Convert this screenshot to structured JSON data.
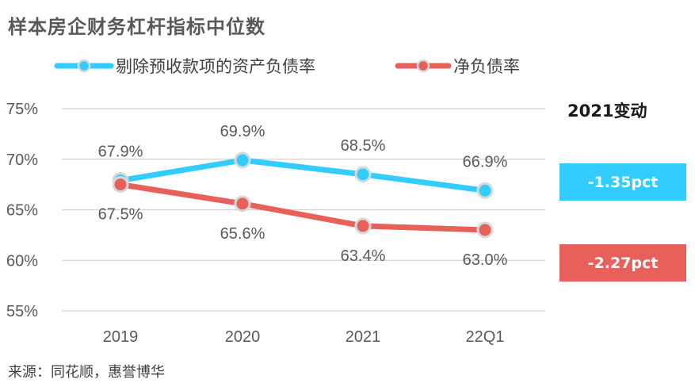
{
  "title": "样本房企财务杠杆指标中位数",
  "source": "来源：同花顺，惠誉博华",
  "side_panel": {
    "title": "2021变动",
    "changes": [
      {
        "label": "-1.35pct",
        "color": "#33ccff"
      },
      {
        "label": "-2.27pct",
        "color": "#e8605a"
      }
    ]
  },
  "chart_data": {
    "type": "line",
    "categories": [
      "2019",
      "2020",
      "2021",
      "22Q1"
    ],
    "ylim": [
      55,
      75
    ],
    "yticks": [
      55,
      60,
      65,
      70,
      75
    ],
    "ytick_labels": [
      "55%",
      "60%",
      "65%",
      "70%",
      "75%"
    ],
    "grid": true,
    "legend": "top",
    "series": [
      {
        "name": "剔除预收款项的资产负债率",
        "values": [
          67.9,
          69.9,
          68.5,
          66.9
        ],
        "labels": [
          "67.9%",
          "69.9%",
          "68.5%",
          "66.9%"
        ],
        "color": "#33ccff"
      },
      {
        "name": "净负债率",
        "values": [
          67.5,
          65.6,
          63.4,
          63.0
        ],
        "labels": [
          "67.5%",
          "65.6%",
          "63.4%",
          "63.0%"
        ],
        "color": "#e8605a"
      }
    ]
  }
}
